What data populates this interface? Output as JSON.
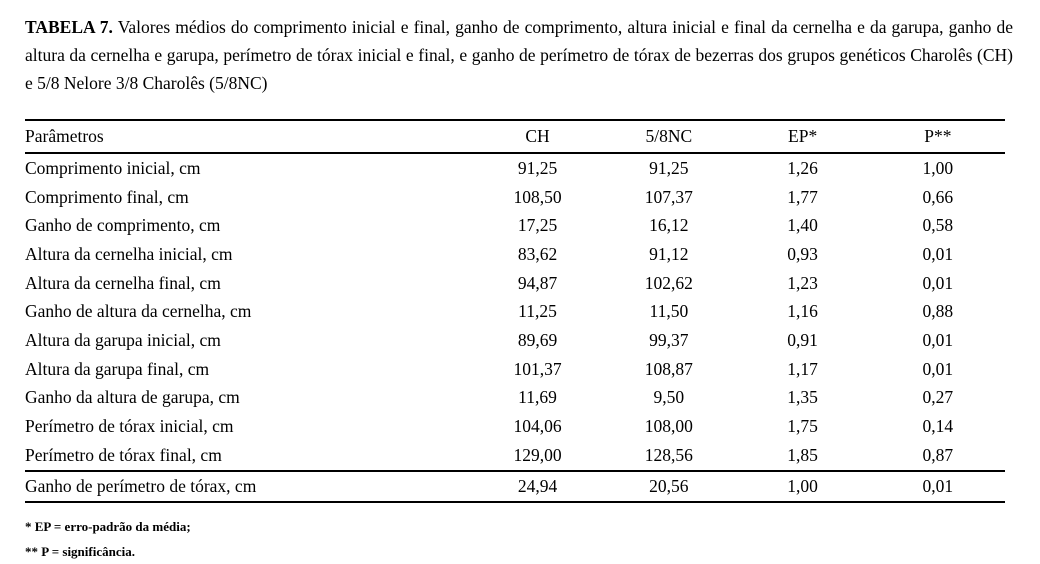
{
  "page": {
    "background": "#ffffff",
    "text_color": "#000000"
  },
  "caption": {
    "label": "TABELA 7.",
    "text": "Valores médios do comprimento inicial e final, ganho de comprimento, altura inicial e final da cernelha e da garupa, ganho de altura da cernelha e garupa, perímetro de tórax inicial e final, e ganho de perímetro de tórax de bezerras dos grupos genéticos Charolês (CH) e 5/8 Nelore 3/8 Charolês (5/8NC)"
  },
  "table": {
    "columns": [
      "Parâmetros",
      "CH",
      "5/8NC",
      "EP*",
      "P**"
    ],
    "rows": [
      {
        "param": "Comprimento inicial, cm",
        "ch": "91,25",
        "nc": "91,25",
        "ep": "1,26",
        "p": "1,00"
      },
      {
        "param": "Comprimento final, cm",
        "ch": "108,50",
        "nc": "107,37",
        "ep": "1,77",
        "p": "0,66"
      },
      {
        "param": "Ganho de comprimento, cm",
        "ch": "17,25",
        "nc": "16,12",
        "ep": "1,40",
        "p": "0,58"
      },
      {
        "param": "Altura da cernelha inicial, cm",
        "ch": "83,62",
        "nc": "91,12",
        "ep": "0,93",
        "p": "0,01"
      },
      {
        "param": "Altura da cernelha final, cm",
        "ch": "94,87",
        "nc": "102,62",
        "ep": "1,23",
        "p": "0,01"
      },
      {
        "param": "Ganho de altura da cernelha, cm",
        "ch": "11,25",
        "nc": "11,50",
        "ep": "1,16",
        "p": "0,88"
      },
      {
        "param": "Altura da garupa inicial, cm",
        "ch": "89,69",
        "nc": "99,37",
        "ep": "0,91",
        "p": "0,01"
      },
      {
        "param": "Altura da garupa final, cm",
        "ch": "101,37",
        "nc": "108,87",
        "ep": "1,17",
        "p": "0,01"
      },
      {
        "param": "Ganho da altura de garupa, cm",
        "ch": "11,69",
        "nc": "9,50",
        "ep": "1,35",
        "p": "0,27"
      },
      {
        "param": "Perímetro de tórax inicial, cm",
        "ch": "104,06",
        "nc": "108,00",
        "ep": "1,75",
        "p": "0,14"
      },
      {
        "param": "Perímetro de tórax final, cm",
        "ch": "129,00",
        "nc": "128,56",
        "ep": "1,85",
        "p": "0,87"
      },
      {
        "param": "Ganho de perímetro de tórax, cm",
        "ch": "24,94",
        "nc": "20,56",
        "ep": "1,00",
        "p": "0,01"
      }
    ]
  },
  "footnotes": [
    "* EP = erro-padrão da média;",
    "** P = significância."
  ]
}
